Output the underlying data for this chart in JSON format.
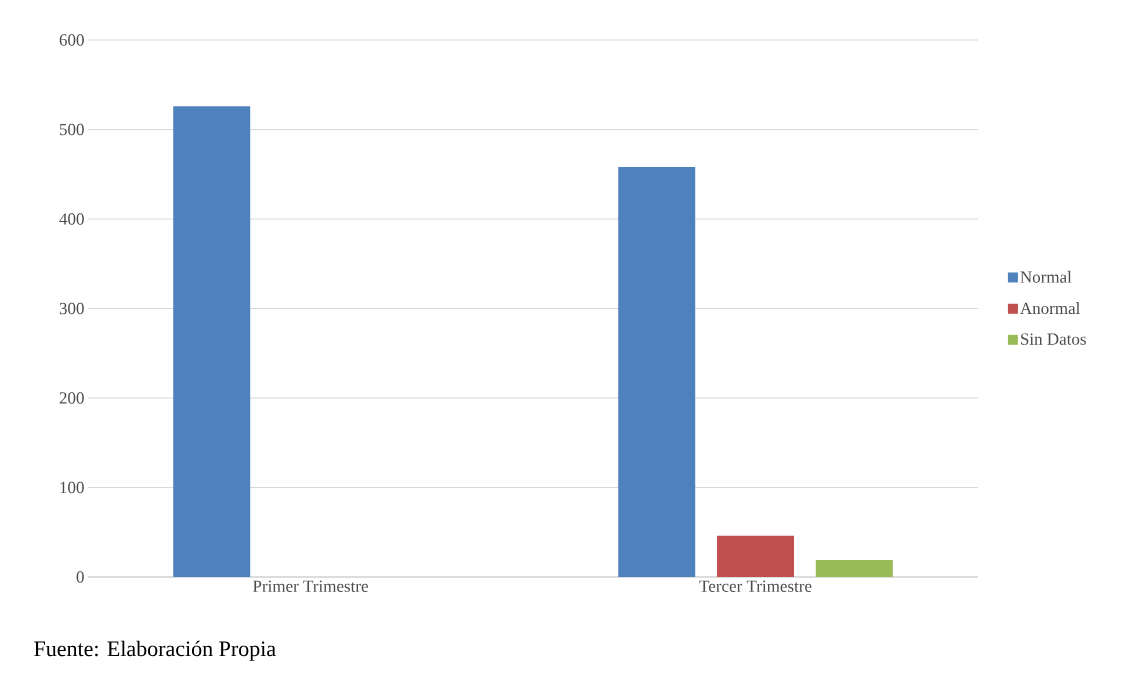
{
  "chart_data": {
    "type": "bar",
    "categories": [
      "Primer Trimestre",
      "Tercer Trimestre"
    ],
    "series": [
      {
        "name": "Normal",
        "color": "#4f81bd",
        "values": [
          526,
          458
        ]
      },
      {
        "name": "Anormal",
        "color": "#c0504d",
        "values": [
          null,
          46
        ]
      },
      {
        "name": "Sin Datos",
        "color": "#9bbb59",
        "values": [
          null,
          19
        ]
      }
    ],
    "ylim": [
      0,
      600
    ],
    "yticks": [
      0,
      100,
      200,
      300,
      400,
      500,
      600
    ],
    "grid": "y",
    "legend": "right",
    "annotations": [
      "Fuente: Elaboración Propia"
    ]
  }
}
